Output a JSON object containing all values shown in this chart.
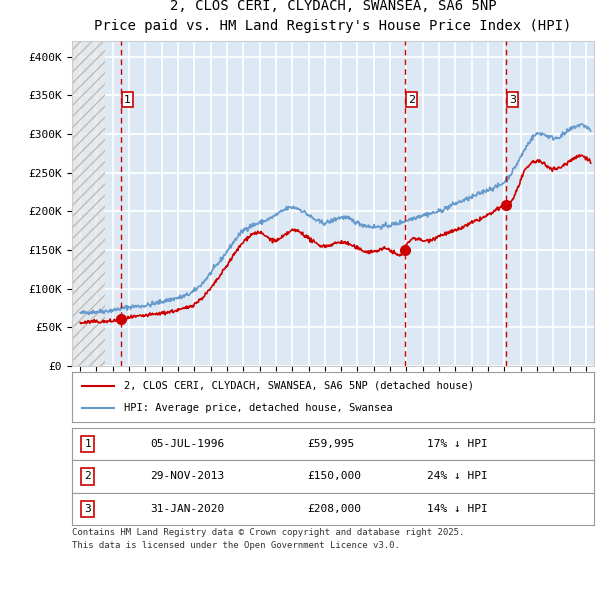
{
  "title_line1": "2, CLOS CERI, CLYDACH, SWANSEA, SA6 5NP",
  "title_line2": "Price paid vs. HM Land Registry's House Price Index (HPI)",
  "ylabel": "",
  "xlabel": "",
  "ylim": [
    0,
    420000
  ],
  "yticks": [
    0,
    50000,
    100000,
    150000,
    200000,
    250000,
    300000,
    350000,
    400000
  ],
  "ytick_labels": [
    "£0",
    "£50K",
    "£100K",
    "£150K",
    "£200K",
    "£250K",
    "£300K",
    "£350K",
    "£400K"
  ],
  "xmin": 1993.5,
  "xmax": 2025.5,
  "hatch_xmax": 1995.5,
  "plot_bg_color": "#dce9f5",
  "grid_color": "#ffffff",
  "hatch_color": "#c0c0c0",
  "transaction1": {
    "date_x": 1996.5,
    "price": 59995,
    "label": "1",
    "date_str": "05-JUL-1996",
    "price_str": "£59,995",
    "hpi_str": "17% ↓ HPI"
  },
  "transaction2": {
    "date_x": 2013.9,
    "price": 150000,
    "label": "2",
    "date_str": "29-NOV-2013",
    "price_str": "£150,000",
    "hpi_str": "24% ↓ HPI"
  },
  "transaction3": {
    "date_x": 2020.08,
    "price": 208000,
    "label": "3",
    "date_str": "31-JAN-2020",
    "price_str": "£208,000",
    "hpi_str": "14% ↓ HPI"
  },
  "legend_red": "2, CLOS CERI, CLYDACH, SWANSEA, SA6 5NP (detached house)",
  "legend_blue": "HPI: Average price, detached house, Swansea",
  "footer": "Contains HM Land Registry data © Crown copyright and database right 2025.\nThis data is licensed under the Open Government Licence v3.0.",
  "red_color": "#cc0000",
  "blue_color": "#6699cc",
  "marker_color": "#cc0000"
}
